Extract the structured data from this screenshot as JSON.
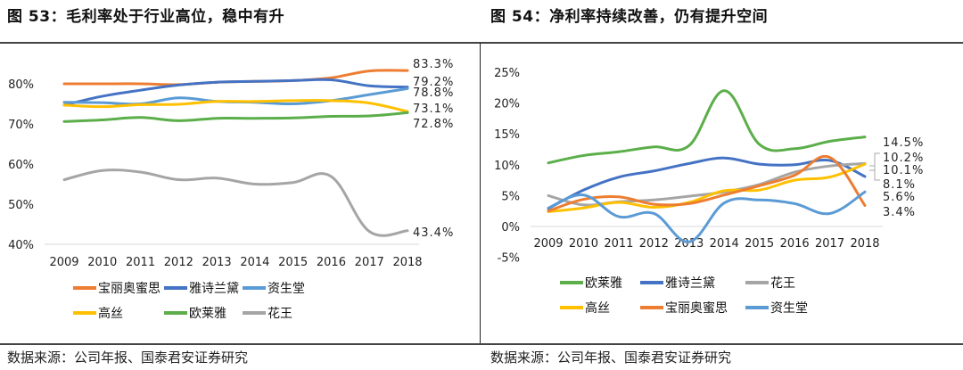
{
  "titles": [
    "图 53：毛利率处于行业高位，稳中有升",
    "图 54：净利率持续改善，仍有提升空间"
  ],
  "sources": [
    "数据来源：公司年报、国泰君安证券研究",
    "数据来源：公司年报、国泰君安证券研究"
  ],
  "colors": {
    "宝丽奥蜜思": "#ED7D31",
    "雅诗兰黛": "#4472C4",
    "资生堂": "#5B9BD5",
    "高丝": "#FFC000",
    "欧莱雅": "#5BAE4A",
    "花王": "#A5A5A5"
  },
  "chart_data": [
    {
      "type": "line",
      "title": "毛利率处于行业高位，稳中有升",
      "categories": [
        "2009",
        "2010",
        "2011",
        "2012",
        "2013",
        "2014",
        "2015",
        "2016",
        "2017",
        "2018"
      ],
      "ylim": [
        40,
        85
      ],
      "yticks": [
        "40%",
        "50%",
        "60%",
        "70%",
        "80%"
      ],
      "ytick_values": [
        40,
        50,
        60,
        70,
        80
      ],
      "legend_order": [
        "宝丽奥蜜思",
        "雅诗兰黛",
        "资生堂",
        "高丝",
        "欧莱雅",
        "花王"
      ],
      "legend_placement": "bottom",
      "grid": false,
      "series": [
        {
          "name": "宝丽奥蜜思",
          "values": [
            80.0,
            80.0,
            80.0,
            79.8,
            80.4,
            80.6,
            80.8,
            81.5,
            83.2,
            83.3
          ],
          "end_label": "83.3%"
        },
        {
          "name": "雅诗兰黛",
          "values": [
            74.7,
            76.9,
            78.4,
            79.7,
            80.4,
            80.6,
            80.8,
            81.0,
            79.5,
            79.2
          ],
          "end_label": "79.2%"
        },
        {
          "name": "资生堂",
          "values": [
            75.4,
            75.3,
            75.0,
            76.5,
            75.6,
            75.4,
            75.0,
            75.8,
            77.3,
            78.8
          ],
          "end_label": "78.8%"
        },
        {
          "name": "高丝",
          "values": [
            74.7,
            74.3,
            74.8,
            74.9,
            75.6,
            75.6,
            75.8,
            75.8,
            75.2,
            73.1
          ],
          "end_label": "73.1%"
        },
        {
          "name": "欧莱雅",
          "values": [
            70.6,
            71.0,
            71.6,
            70.8,
            71.4,
            71.4,
            71.5,
            71.9,
            72.0,
            72.8
          ],
          "end_label": "72.8%"
        },
        {
          "name": "花王",
          "values": [
            56.1,
            58.4,
            58.0,
            56.1,
            56.5,
            55.0,
            55.4,
            56.9,
            43.2,
            43.4
          ],
          "end_label": "43.4%"
        }
      ]
    },
    {
      "type": "line",
      "title": "净利率持续改善，仍有提升空间",
      "categories": [
        "2009",
        "2010",
        "2011",
        "2012",
        "2013",
        "2014",
        "2015",
        "2016",
        "2017",
        "2018"
      ],
      "ylim": [
        -5,
        25
      ],
      "yticks": [
        "-5%",
        "0%",
        "5%",
        "10%",
        "15%",
        "20%",
        "25%"
      ],
      "ytick_values": [
        -5,
        0,
        5,
        10,
        15,
        20,
        25
      ],
      "legend_order": [
        "欧莱雅",
        "雅诗兰黛",
        "花王",
        "高丝",
        "宝丽奥蜜思",
        "资生堂"
      ],
      "legend_placement": "bottom",
      "grid": false,
      "series": [
        {
          "name": "欧莱雅",
          "values": [
            10.3,
            11.5,
            12.1,
            12.9,
            13.1,
            22.0,
            13.3,
            12.6,
            13.8,
            14.5
          ],
          "end_label": "14.5%"
        },
        {
          "name": "雅诗兰黛",
          "values": [
            2.9,
            5.9,
            8.0,
            9.0,
            10.2,
            11.1,
            10.1,
            10.0,
            10.7,
            8.1
          ],
          "end_label": "8.1%"
        },
        {
          "name": "花王",
          "values": [
            5.0,
            3.5,
            4.0,
            4.3,
            4.9,
            5.6,
            6.8,
            8.8,
            9.8,
            10.2
          ],
          "end_label": "10.2%"
        },
        {
          "name": "高丝",
          "values": [
            2.4,
            3.0,
            3.9,
            3.1,
            3.9,
            5.8,
            5.9,
            7.5,
            8.0,
            10.1
          ],
          "end_label": "10.1%"
        },
        {
          "name": "宝丽奥蜜思",
          "values": [
            2.5,
            4.4,
            4.8,
            3.6,
            3.7,
            5.1,
            6.6,
            8.3,
            11.2,
            3.4
          ],
          "end_label": "3.4%"
        },
        {
          "name": "资生堂",
          "values": [
            3.0,
            5.1,
            1.6,
            2.1,
            -2.5,
            3.8,
            4.3,
            3.7,
            2.1,
            5.6
          ],
          "end_label": "5.6%"
        }
      ]
    }
  ]
}
